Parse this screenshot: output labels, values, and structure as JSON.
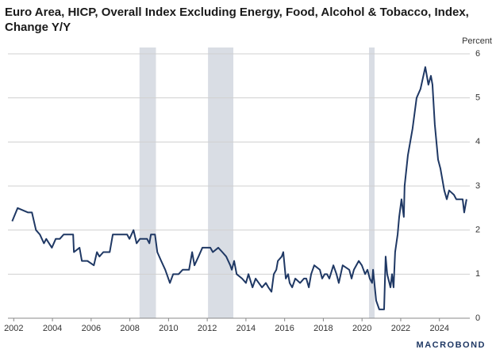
{
  "chart_data": {
    "type": "line",
    "title": "Euro Area, HICP, Overall Index Excluding Energy, Food, Alcohol & Tobacco, Index, Change Y/Y",
    "y_axis_label": "Percent",
    "logo": "MACROBOND",
    "color": "#1f3864",
    "shade_color": "#d9dde4",
    "grid": true,
    "xlim": [
      2001.7,
      2025.57
    ],
    "ylim": [
      0,
      6
    ],
    "xticks": [
      2002,
      2004,
      2006,
      2008,
      2010,
      2012,
      2014,
      2016,
      2018,
      2020,
      2022,
      2024
    ],
    "yticks": [
      0,
      1,
      2,
      3,
      4,
      5,
      6
    ],
    "shaded_periods": [
      [
        2008.5,
        2009.35
      ],
      [
        2012.04,
        2013.35
      ],
      [
        2020.36,
        2020.65
      ]
    ],
    "x": [
      2001.92,
      2002.2,
      2002.74,
      2002.94,
      2003.15,
      2003.35,
      2003.56,
      2003.68,
      2003.97,
      2004.17,
      2004.38,
      2004.58,
      2005.07,
      2005.11,
      2005.4,
      2005.52,
      2005.81,
      2006.14,
      2006.3,
      2006.43,
      2006.63,
      2006.96,
      2007.12,
      2007.86,
      2007.98,
      2008.19,
      2008.35,
      2008.52,
      2008.89,
      2009.01,
      2009.09,
      2009.3,
      2009.42,
      2009.62,
      2009.83,
      2009.91,
      2010.07,
      2010.24,
      2010.52,
      2010.73,
      2011.06,
      2011.22,
      2011.34,
      2011.55,
      2011.75,
      2012.16,
      2012.29,
      2012.57,
      2012.78,
      2012.98,
      2013.19,
      2013.27,
      2013.39,
      2013.52,
      2013.8,
      2014.0,
      2014.13,
      2014.34,
      2014.5,
      2014.83,
      2015.03,
      2015.16,
      2015.32,
      2015.44,
      2015.57,
      2015.65,
      2015.85,
      2015.93,
      2016.06,
      2016.18,
      2016.26,
      2016.39,
      2016.55,
      2016.8,
      2017.0,
      2017.12,
      2017.25,
      2017.37,
      2017.53,
      2017.82,
      2017.94,
      2018.07,
      2018.19,
      2018.31,
      2018.52,
      2018.68,
      2018.8,
      2019.0,
      2019.34,
      2019.46,
      2019.58,
      2019.83,
      2019.99,
      2020.16,
      2020.28,
      2020.4,
      2020.52,
      2020.57,
      2020.73,
      2020.89,
      2021.14,
      2021.22,
      2021.3,
      2021.47,
      2021.55,
      2021.63,
      2021.71,
      2021.84,
      2021.92,
      2022.04,
      2022.16,
      2022.2,
      2022.37,
      2022.45,
      2022.61,
      2022.82,
      2023.02,
      2023.27,
      2023.43,
      2023.56,
      2023.64,
      2023.76,
      2023.93,
      2024.05,
      2024.25,
      2024.38,
      2024.5,
      2024.75,
      2024.87,
      2025.08,
      2025.2,
      2025.28,
      2025.4
    ],
    "values": [
      2.2,
      2.5,
      2.4,
      2.4,
      2.0,
      1.9,
      1.7,
      1.8,
      1.6,
      1.8,
      1.8,
      1.9,
      1.9,
      1.5,
      1.6,
      1.3,
      1.3,
      1.2,
      1.5,
      1.4,
      1.5,
      1.5,
      1.9,
      1.9,
      1.8,
      2.0,
      1.7,
      1.8,
      1.8,
      1.7,
      1.9,
      1.9,
      1.5,
      1.3,
      1.1,
      1.0,
      0.8,
      1.0,
      1.0,
      1.1,
      1.1,
      1.5,
      1.2,
      1.4,
      1.6,
      1.6,
      1.5,
      1.6,
      1.5,
      1.4,
      1.2,
      1.1,
      1.3,
      1.0,
      0.9,
      0.8,
      1.0,
      0.7,
      0.9,
      0.7,
      0.8,
      0.7,
      0.6,
      1.0,
      1.1,
      1.3,
      1.4,
      1.5,
      0.9,
      1.0,
      0.8,
      0.7,
      0.9,
      0.8,
      0.9,
      0.9,
      0.7,
      1.0,
      1.2,
      1.1,
      0.9,
      1.0,
      1.0,
      0.9,
      1.2,
      1.0,
      0.8,
      1.2,
      1.1,
      0.9,
      1.1,
      1.3,
      1.2,
      1.0,
      1.1,
      0.9,
      0.8,
      1.1,
      0.4,
      0.2,
      0.2,
      1.4,
      1.0,
      0.7,
      1.0,
      0.7,
      1.5,
      1.9,
      2.3,
      2.7,
      2.3,
      3.0,
      3.7,
      3.9,
      4.3,
      5.0,
      5.2,
      5.7,
      5.3,
      5.5,
      5.3,
      4.4,
      3.6,
      3.4,
      2.9,
      2.7,
      2.9,
      2.8,
      2.7,
      2.7,
      2.7,
      2.4,
      2.7
    ]
  }
}
